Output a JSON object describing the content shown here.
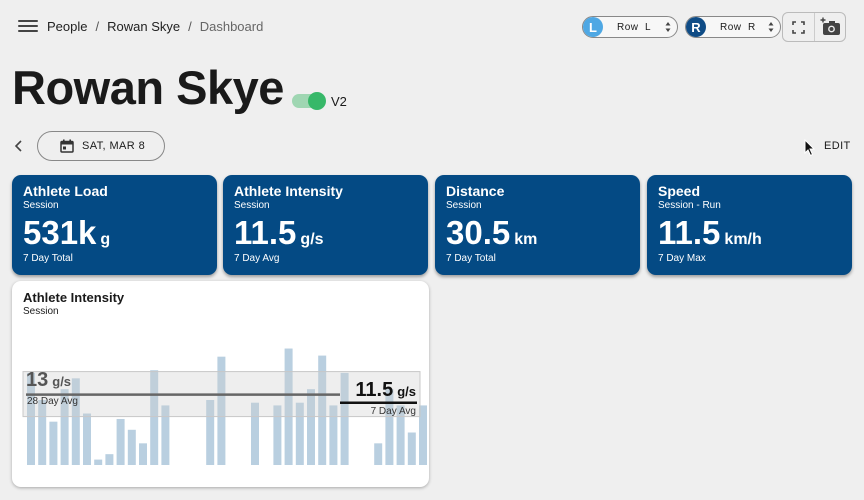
{
  "breadcrumb": {
    "items": [
      "People",
      "Rowan Skye"
    ],
    "current": "Dashboard"
  },
  "row_selectors": [
    {
      "badge": "L",
      "label": "Row  L",
      "color": "#4fa8e4"
    },
    {
      "badge": "R",
      "label": "Row  R",
      "color": "#0f4c86"
    }
  ],
  "icons": {
    "menu": "menu-icon",
    "fullscreen": "fullscreen-icon",
    "camera": "add-camera-icon",
    "calendar": "calendar-icon",
    "back": "chevron-left-icon"
  },
  "athlete": {
    "name": "Rowan Skye",
    "version": "V2",
    "toggle_on": true
  },
  "date_label": "SAT, MAR 8",
  "edit_label": "EDIT",
  "cards": [
    {
      "title": "Athlete Load",
      "subtitle": "Session",
      "value": "531k",
      "unit": "g",
      "footer": "7 Day Total"
    },
    {
      "title": "Athlete Intensity",
      "subtitle": "Session",
      "value": "11.5",
      "unit": "g/s",
      "footer": "7 Day Avg"
    },
    {
      "title": "Distance",
      "subtitle": "Session",
      "value": "30.5",
      "unit": "km",
      "footer": "7 Day Total"
    },
    {
      "title": "Speed",
      "subtitle": "Session - Run",
      "value": "11.5",
      "unit": "km/h",
      "footer": "7 Day Max"
    }
  ],
  "colors": {
    "card_bg": "#044a84",
    "bar": "#b9cfe0",
    "toggle": "#37b869"
  },
  "chart_data": {
    "type": "bar",
    "title": "Athlete Intensity",
    "subtitle": "Session",
    "unit": "g/s",
    "values": [
      17,
      12,
      8,
      14,
      16,
      9.5,
      1,
      2,
      8.5,
      6.5,
      4,
      17.5,
      11,
      0,
      0,
      0,
      12,
      20,
      0,
      0,
      11.5,
      0,
      11,
      21.5,
      11.5,
      14,
      20.2,
      11,
      17,
      0,
      0,
      4,
      14,
      11,
      6,
      11
    ],
    "ylim": [
      0,
      24
    ],
    "annotations": [
      {
        "value": 13,
        "label": "13",
        "unit": "g/s",
        "caption": "28 Day Avg"
      },
      {
        "value": 11.5,
        "label": "11.5",
        "unit": "g/s",
        "caption": "7 Day Avg"
      }
    ]
  }
}
